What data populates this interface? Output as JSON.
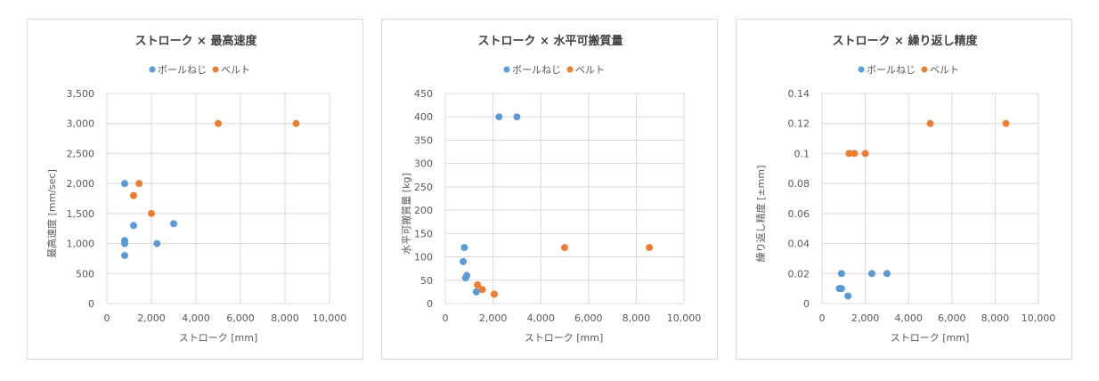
{
  "colors": {
    "ballscrew": "#5b9bd5",
    "belt": "#ed7d31",
    "grid": "#d9d9d9",
    "text": "#595959",
    "title": "#404040"
  },
  "chart_data": [
    {
      "type": "scatter",
      "title": "ストローク × 最高速度",
      "xlabel": "ストローク [mm]",
      "ylabel": "最高速度 [mm/sec]",
      "xlim": [
        0,
        10000
      ],
      "ylim": [
        0,
        3500
      ],
      "xticks": [
        0,
        2000,
        4000,
        6000,
        8000,
        10000
      ],
      "xtick_labels": [
        "0",
        "2,000",
        "4,000",
        "6,000",
        "8,000",
        "10,000"
      ],
      "yticks": [
        0,
        500,
        1000,
        1500,
        2000,
        2500,
        3000,
        3500
      ],
      "ytick_labels": [
        "0",
        "500",
        "1,000",
        "1,500",
        "2,000",
        "2,500",
        "3,000",
        "3,500"
      ],
      "grid": true,
      "legend_position": "top",
      "series": [
        {
          "name": "ボールねじ",
          "color_key": "ballscrew",
          "points": [
            [
              800,
              2000
            ],
            [
              800,
              1050
            ],
            [
              800,
              1000
            ],
            [
              800,
              800
            ],
            [
              1200,
              1300
            ],
            [
              2250,
              1000
            ],
            [
              3000,
              1330
            ]
          ]
        },
        {
          "name": "ベルト",
          "color_key": "belt",
          "points": [
            [
              1200,
              1800
            ],
            [
              1450,
              2000
            ],
            [
              2000,
              1500
            ],
            [
              5000,
              3000
            ],
            [
              8500,
              3000
            ]
          ]
        }
      ]
    },
    {
      "type": "scatter",
      "title": "ストローク × 水平可搬質量",
      "xlabel": "ストローク [mm]",
      "ylabel": "水平可搬質量 [kg]",
      "xlim": [
        0,
        10000
      ],
      "ylim": [
        0,
        450
      ],
      "xticks": [
        0,
        2000,
        4000,
        6000,
        8000,
        10000
      ],
      "xtick_labels": [
        "0",
        "2,000",
        "4,000",
        "6,000",
        "8,000",
        "10,000"
      ],
      "yticks": [
        0,
        50,
        100,
        150,
        200,
        250,
        300,
        350,
        400,
        450
      ],
      "ytick_labels": [
        "0",
        "50",
        "100",
        "150",
        "200",
        "250",
        "300",
        "350",
        "400",
        "450"
      ],
      "grid": true,
      "legend_position": "top",
      "series": [
        {
          "name": "ボールねじ",
          "color_key": "ballscrew",
          "points": [
            [
              800,
              120
            ],
            [
              750,
              90
            ],
            [
              900,
              60
            ],
            [
              850,
              55
            ],
            [
              1300,
              25
            ],
            [
              2250,
              400
            ],
            [
              3000,
              400
            ]
          ]
        },
        {
          "name": "ベルト",
          "color_key": "belt",
          "points": [
            [
              1350,
              40
            ],
            [
              1550,
              30
            ],
            [
              2050,
              20
            ],
            [
              5000,
              120
            ],
            [
              8550,
              120
            ]
          ]
        }
      ]
    },
    {
      "type": "scatter",
      "title": "ストローク × 繰り返し精度",
      "xlabel": "ストローク [mm]",
      "ylabel": "繰り返し精度 [±mm]",
      "xlim": [
        0,
        10000
      ],
      "ylim": [
        0,
        0.14
      ],
      "xticks": [
        0,
        2000,
        4000,
        6000,
        8000,
        10000
      ],
      "xtick_labels": [
        "0",
        "2,000",
        "4,000",
        "6,000",
        "8,000",
        "10,000"
      ],
      "yticks": [
        0,
        0.02,
        0.04,
        0.06,
        0.08,
        0.1,
        0.12,
        0.14
      ],
      "ytick_labels": [
        "0",
        "0.02",
        "0.04",
        "0.06",
        "0.08",
        "0.1",
        "0.12",
        "0.14"
      ],
      "grid": true,
      "legend_position": "top",
      "series": [
        {
          "name": "ボールねじ",
          "color_key": "ballscrew",
          "points": [
            [
              800,
              0.01
            ],
            [
              900,
              0.01
            ],
            [
              900,
              0.02
            ],
            [
              1200,
              0.005
            ],
            [
              2300,
              0.02
            ],
            [
              3000,
              0.02
            ]
          ]
        },
        {
          "name": "ベルト",
          "color_key": "belt",
          "points": [
            [
              1250,
              0.1
            ],
            [
              1500,
              0.1
            ],
            [
              2000,
              0.1
            ],
            [
              5000,
              0.12
            ],
            [
              8500,
              0.12
            ]
          ]
        }
      ]
    }
  ]
}
